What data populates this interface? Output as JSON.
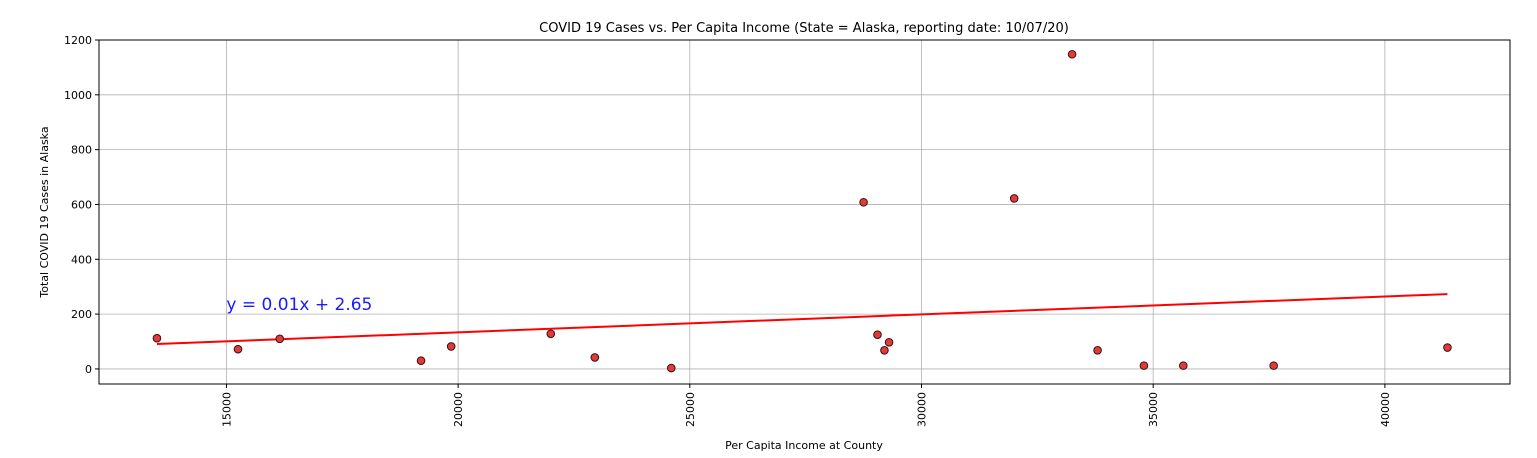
{
  "chart_data": {
    "type": "scatter",
    "title": "COVID 19 Cases vs. Per Capita Income (State = Alaska, reporting date: 10/07/20)",
    "xlabel": "Per Capita Income at County",
    "ylabel": "Total COVID 19 Cases in Alaska",
    "xlim": [
      12250,
      42700
    ],
    "ylim": [
      -55,
      1200
    ],
    "xticks": [
      15000,
      20000,
      25000,
      30000,
      35000,
      40000
    ],
    "yticks": [
      0,
      200,
      400,
      600,
      800,
      1000,
      1200
    ],
    "grid": true,
    "points": [
      {
        "x": 13500,
        "y": 112
      },
      {
        "x": 15250,
        "y": 72
      },
      {
        "x": 16150,
        "y": 110
      },
      {
        "x": 19200,
        "y": 30
      },
      {
        "x": 19850,
        "y": 82
      },
      {
        "x": 22000,
        "y": 128
      },
      {
        "x": 22950,
        "y": 42
      },
      {
        "x": 24600,
        "y": 3
      },
      {
        "x": 28750,
        "y": 608
      },
      {
        "x": 29050,
        "y": 125
      },
      {
        "x": 29200,
        "y": 68
      },
      {
        "x": 29300,
        "y": 97
      },
      {
        "x": 32000,
        "y": 622
      },
      {
        "x": 33250,
        "y": 1148
      },
      {
        "x": 33800,
        "y": 68
      },
      {
        "x": 34800,
        "y": 12
      },
      {
        "x": 35650,
        "y": 12
      },
      {
        "x": 37600,
        "y": 12
      },
      {
        "x": 41350,
        "y": 78
      }
    ],
    "regression": {
      "label": "y = 0.01x + 2.65",
      "x_range": [
        13500,
        41350
      ],
      "y_range": [
        91,
        273
      ],
      "label_anchor": {
        "x": 15000,
        "y": 215
      }
    },
    "colors": {
      "marker_fill": "#e03a3a",
      "marker_edge": "#3a1010",
      "line": "#ff0000",
      "annotation": "#1a1aff"
    }
  }
}
